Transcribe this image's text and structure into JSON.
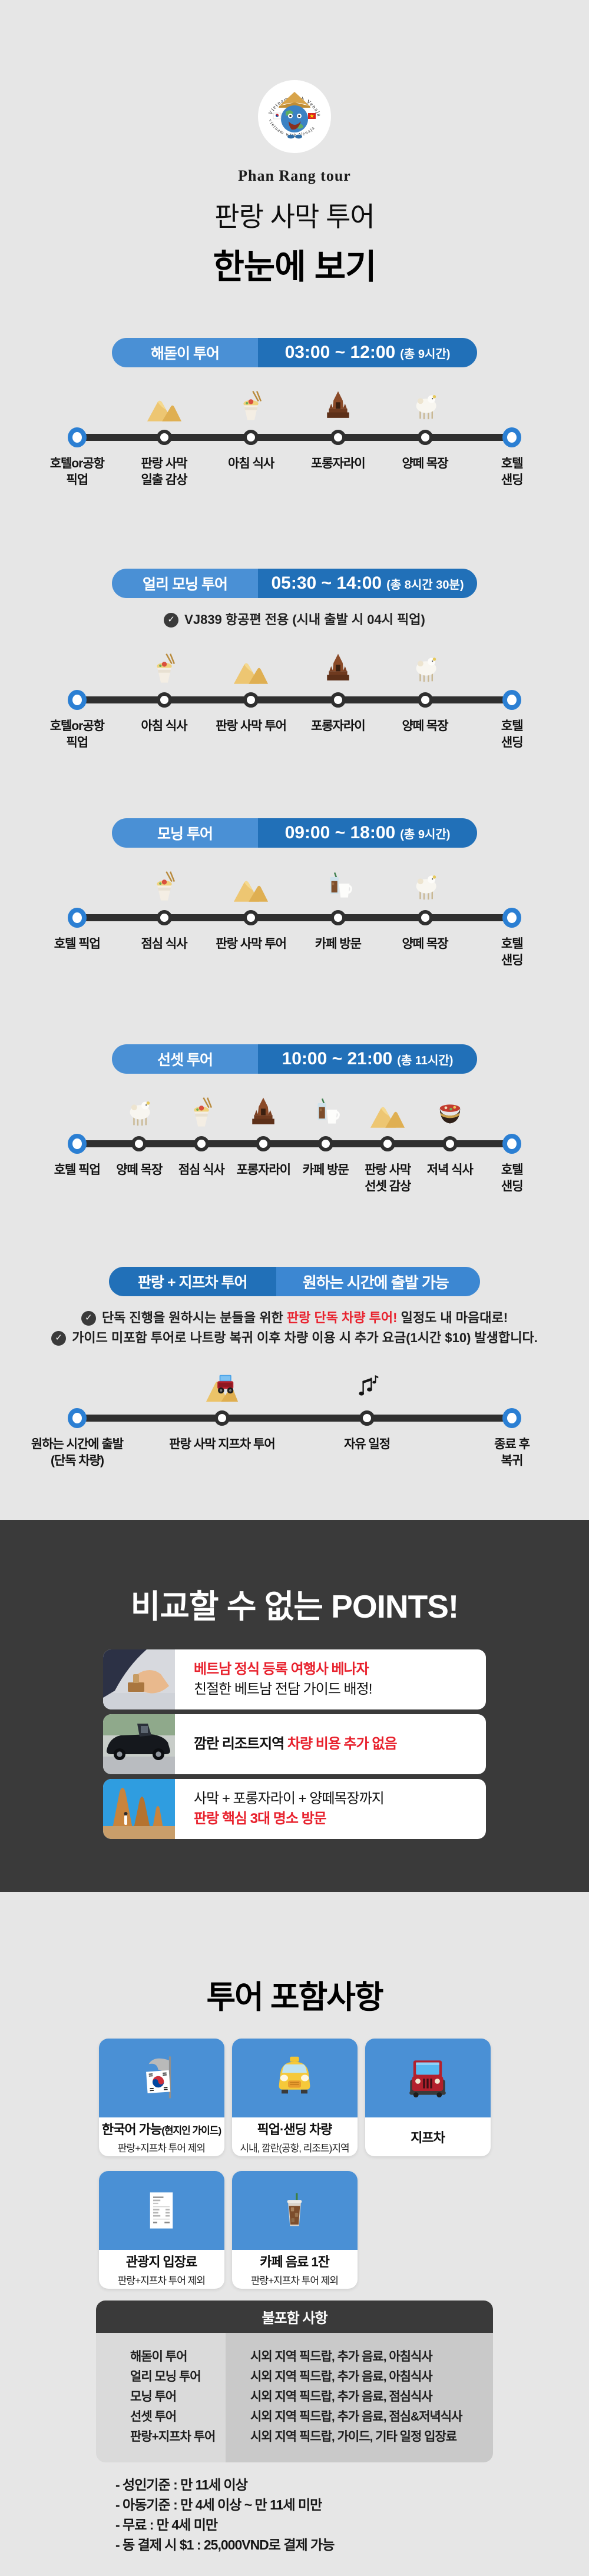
{
  "colors": {
    "page_bg": "#e6e6e6",
    "pill_blue_light": "#4a90d5",
    "pill_blue_dark": "#2170b8",
    "timeline_bar": "#2f2f2f",
    "endpoint_node_blue": "#2b7fd3",
    "dark_section_bg": "#3a3a3a",
    "accent_red": "#e8212d",
    "included_card_blue": "#4a90d5",
    "excluded_left_col": "#dadada",
    "excluded_right_col": "#c9c9c9"
  },
  "header": {
    "logo_icon": "globe-mascot-logo",
    "logo_arc_text": "Vietnam with Venaja",
    "brand": "Phan Rang tour",
    "title_line1": "판랑 사막 투어",
    "title_line2": "한눈에 보기"
  },
  "tours": [
    {
      "name": "해돋이 투어",
      "time": "03:00 ~ 12:00",
      "duration": "(총 9시간)",
      "notes": [],
      "stops": [
        {
          "line1": "호텔or공항",
          "line2": "픽업",
          "icon": "",
          "end": true
        },
        {
          "line1": "판랑 사막",
          "line2": "일출 감상",
          "icon": "dunes"
        },
        {
          "line1": "아침 식사",
          "line2": "",
          "icon": "noodles"
        },
        {
          "line1": "포롱자라이",
          "line2": "",
          "icon": "tower"
        },
        {
          "line1": "양떼 목장",
          "line2": "",
          "icon": "sheep"
        },
        {
          "line1": "호텔",
          "line2": "샌딩",
          "icon": "",
          "end": true
        }
      ]
    },
    {
      "name": "얼리 모닝 투어",
      "time": "05:30 ~ 14:00",
      "duration": "(총 8시간 30분)",
      "notes": [
        {
          "pre": "VJ839 항공편 전용 (시내 출발 시 04시 픽업)",
          "em": "",
          "post": ""
        }
      ],
      "stops": [
        {
          "line1": "호텔or공항",
          "line2": "픽업",
          "icon": "",
          "end": true
        },
        {
          "line1": "아침 식사",
          "line2": "",
          "icon": "noodles"
        },
        {
          "line1": "판랑 사막 투어",
          "line2": "",
          "icon": "dunes"
        },
        {
          "line1": "포롱자라이",
          "line2": "",
          "icon": "tower"
        },
        {
          "line1": "양떼 목장",
          "line2": "",
          "icon": "sheep"
        },
        {
          "line1": "호텔",
          "line2": "샌딩",
          "icon": "",
          "end": true
        }
      ]
    },
    {
      "name": "모닝 투어",
      "time": "09:00 ~ 18:00",
      "duration": "(총 9시간)",
      "notes": [],
      "stops": [
        {
          "line1": "호텔 픽업",
          "line2": "",
          "icon": "",
          "end": true
        },
        {
          "line1": "점심 식사",
          "line2": "",
          "icon": "noodles"
        },
        {
          "line1": "판랑 사막 투어",
          "line2": "",
          "icon": "dunes"
        },
        {
          "line1": "카페 방문",
          "line2": "",
          "icon": "cafe"
        },
        {
          "line1": "양떼 목장",
          "line2": "",
          "icon": "sheep"
        },
        {
          "line1": "호텔",
          "line2": "샌딩",
          "icon": "",
          "end": true
        }
      ]
    },
    {
      "name": "선셋 투어",
      "time": "10:00 ~ 21:00",
      "duration": "(총 11시간)",
      "notes": [],
      "stops": [
        {
          "line1": "호텔 픽업",
          "line2": "",
          "icon": "",
          "end": true
        },
        {
          "line1": "양떼 목장",
          "line2": "",
          "icon": "sheep"
        },
        {
          "line1": "점심 식사",
          "line2": "",
          "icon": "noodles"
        },
        {
          "line1": "포롱자라이",
          "line2": "",
          "icon": "tower"
        },
        {
          "line1": "카페 방문",
          "line2": "",
          "icon": "cafe"
        },
        {
          "line1": "판랑 사막",
          "line2": "선셋 감상",
          "icon": "dunes"
        },
        {
          "line1": "저녁 식사",
          "line2": "",
          "icon": "hotpot"
        },
        {
          "line1": "호텔",
          "line2": "샌딩",
          "icon": "",
          "end": true
        }
      ]
    },
    {
      "name": "판랑 + 지프차 투어",
      "time": "원하는 시간에 출발 가능",
      "duration": "",
      "notes": [
        {
          "pre": "단독 진행을 원하시는 분들을 위한 ",
          "em": "판랑 단독 차량 투어!",
          "post": " 일정도 내 마음대로!"
        },
        {
          "pre": "가이드 미포함 투어로 나트랑 복귀 이후 차량 이용 시 추가 요금(1시간 $10) 발생합니다.",
          "em": "",
          "post": ""
        }
      ],
      "stops": [
        {
          "line1": "원하는 시간에 출발",
          "line2": "(단독 차량)",
          "icon": "",
          "end": true
        },
        {
          "line1": "판랑 사막 지프차 투어",
          "line2": "",
          "icon": "jeep-dune"
        },
        {
          "line1": "자유 일정",
          "line2": "",
          "icon": "music"
        },
        {
          "line1": "종료 후",
          "line2": "복귀",
          "icon": "",
          "end": true
        }
      ]
    }
  ],
  "points": {
    "title": "비교할 수 없는 POINTS!",
    "items": [
      {
        "photo": "stamp-photo",
        "lines": [
          {
            "parts": [
              {
                "t": "베트남 정식 등록 여행사 베나자",
                "red": true,
                "bold": true
              }
            ]
          },
          {
            "parts": [
              {
                "t": "친절한 베트남 전담 가이드 배정!",
                "red": false,
                "bold": false
              }
            ]
          }
        ]
      },
      {
        "photo": "car-photo",
        "lines": [
          {
            "parts": [
              {
                "t": "깜란 리조트지역 ",
                "red": false,
                "bold": true
              },
              {
                "t": "차량 비용 추가 없음",
                "red": true,
                "bold": true
              }
            ]
          }
        ]
      },
      {
        "photo": "temple-photo",
        "lines": [
          {
            "parts": [
              {
                "t": "사막 + 포롱자라이 + 양떼목장까지",
                "red": false,
                "bold": false
              }
            ]
          },
          {
            "parts": [
              {
                "t": "판랑 핵심 3대 명소 방문",
                "red": true,
                "bold": true
              }
            ]
          }
        ]
      }
    ]
  },
  "included": {
    "title": "투어 포함사항",
    "items": [
      {
        "icon": "korean-flag",
        "title": "한국어 가능",
        "title_small": "(현지인 가이드)",
        "subtitle": "판랑+지프차 투어 제외"
      },
      {
        "icon": "taxi",
        "title": "픽업·샌딩 차량",
        "title_small": "",
        "subtitle": "시내, 깜란(공항, 리조트)지역"
      },
      {
        "icon": "jeep",
        "title": "지프차",
        "title_small": "",
        "subtitle": ""
      },
      {
        "icon": "receipt",
        "title": "관광지 입장료",
        "title_small": "",
        "subtitle": "판랑+지프차 투어 제외"
      },
      {
        "icon": "iced-coffee",
        "title": "카페 음료 1잔",
        "title_small": "",
        "subtitle": "판랑+지프차 투어 제외"
      }
    ]
  },
  "excluded": {
    "title": "불포함 사항",
    "rows": [
      {
        "tour": "해돋이 투어",
        "items": "시외 지역 픽드랍, 추가 음료, 아침식사"
      },
      {
        "tour": "얼리 모닝 투어",
        "items": "시외 지역 픽드랍, 추가 음료, 아침식사"
      },
      {
        "tour": "모닝 투어",
        "items": "시외 지역 픽드랍, 추가 음료, 점심식사"
      },
      {
        "tour": "선셋 투어",
        "items": "시외 지역 픽드랍, 추가 음료, 점심&저녁식사"
      },
      {
        "tour": "판랑+지프차 투어",
        "items": "시외 지역 픽드랍, 가이드, 기타 일정 입장료"
      }
    ]
  },
  "footer_notes": [
    "- 성인기준 : 만 11세 이상",
    "- 아동기준 : 만 4세 이상 ~ 만 11세 미만",
    "- 무료 : 만 4세 미만",
    "- 동 결제 시 $1 : 25,000VND로 결제 가능"
  ]
}
